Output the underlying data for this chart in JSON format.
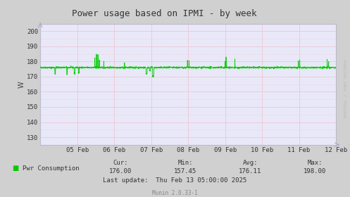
{
  "title": "Power usage based on IPMI - by week",
  "ylabel": "W",
  "bg_color": "#d0d0d0",
  "plot_bg_color": "#e8e8f8",
  "line_color": "#00cc00",
  "ylim": [
    125,
    205
  ],
  "yticks": [
    130,
    140,
    150,
    160,
    170,
    180,
    190,
    200
  ],
  "xtick_labels": [
    "05 Feb",
    "06 Feb",
    "07 Feb",
    "08 Feb",
    "09 Feb",
    "10 Feb",
    "11 Feb",
    "12 Feb"
  ],
  "cur": "176.00",
  "min": "157.45",
  "avg": "176.11",
  "max": "198.00",
  "last_update": "Thu Feb 13 05:00:00 2025",
  "legend_label": "Pwr Consumption",
  "footer": "Munin 2.0.33-1",
  "watermark": "RRDTOOL / TOBI OETIKER"
}
